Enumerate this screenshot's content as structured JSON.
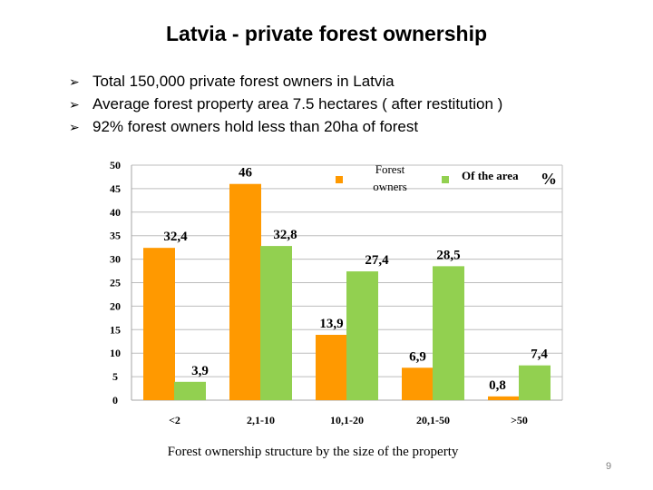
{
  "slide": {
    "title": "Latvia - private forest ownership",
    "bullets": [
      "Total 150,000 private forest owners in Latvia",
      "Average forest property area   7.5 hectares ( after restitution )",
      "92% forest owners hold less than  20ha of forest"
    ],
    "page_number": "9"
  },
  "chart_data": {
    "type": "bar",
    "title": "",
    "caption": "Forest ownership structure by the size of the property",
    "categories": [
      "<2",
      "2,1-10",
      "10,1-20",
      "20,1-50",
      ">50"
    ],
    "series": [
      {
        "name": "Forest owners",
        "color": "#ff9900",
        "values": [
          32.4,
          46,
          13.9,
          6.9,
          0.8
        ],
        "labels": [
          "32,4",
          "46",
          "13,9",
          "6,9",
          "0,8"
        ]
      },
      {
        "name": "Of the area",
        "color": "#92d050",
        "values": [
          3.9,
          32.8,
          27.4,
          28.5,
          7.4
        ],
        "labels": [
          "3,9",
          "32,8",
          "27,4",
          "28,5",
          "7,4"
        ]
      }
    ],
    "legend_unit": "%",
    "yticks": [
      "0",
      "5",
      "10",
      "15",
      "20",
      "25",
      "30",
      "35",
      "40",
      "45",
      "50"
    ],
    "ylim": [
      0,
      50
    ],
    "grid": true,
    "legend_position": "top-right"
  }
}
